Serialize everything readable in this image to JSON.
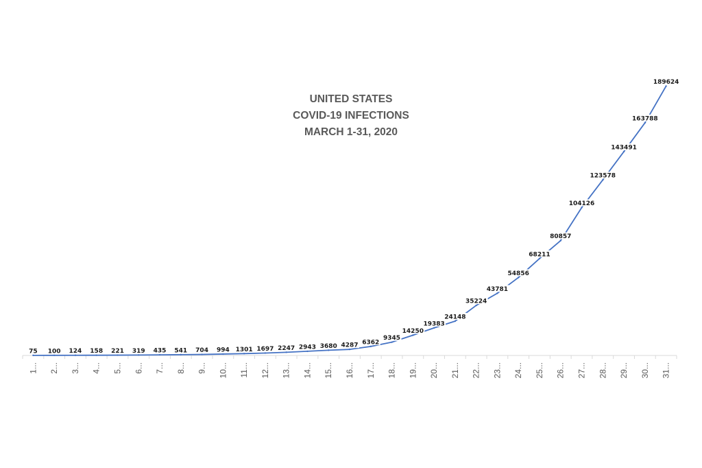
{
  "chart_data": {
    "type": "line",
    "title_lines": [
      "UNITED STATES",
      "COVID-19 INFECTIONS",
      "MARCH 1-31, 2020"
    ],
    "categories": [
      "1...",
      "2...",
      "3...",
      "4...",
      "5...",
      "6...",
      "7...",
      "8...",
      "9...",
      "10...",
      "11...",
      "12...",
      "13...",
      "14...",
      "15...",
      "16...",
      "17...",
      "18...",
      "19...",
      "20...",
      "21...",
      "22...",
      "23...",
      "24...",
      "25...",
      "26...",
      "27...",
      "28...",
      "29...",
      "30...",
      "31..."
    ],
    "series": [
      {
        "values": [
          75,
          100,
          124,
          158,
          221,
          319,
          435,
          541,
          704,
          994,
          1301,
          1697,
          2247,
          2943,
          3680,
          4287,
          6362,
          9345,
          14250,
          19383,
          24148,
          35224,
          43781,
          54856,
          68211,
          80857,
          104126,
          123578,
          143491,
          163788,
          189624
        ],
        "color": "#4472c4"
      }
    ],
    "data_labels": [
      "75",
      "100",
      "124",
      "158",
      "221",
      "319",
      "435",
      "541",
      "704",
      "994",
      "1301",
      "1697",
      "2247",
      "2943",
      "3680",
      "4287",
      "6362",
      "9345",
      "14250",
      "19383",
      "24148",
      "35224",
      "43781",
      "54856",
      "68211",
      "80857",
      "104126",
      "123578",
      "143491",
      "163788",
      "189624"
    ],
    "xlabel": "",
    "ylabel": "",
    "ylim": [
      0,
      200000
    ],
    "grid": false,
    "legend": "none",
    "axis_color": "#d9d9d9"
  }
}
